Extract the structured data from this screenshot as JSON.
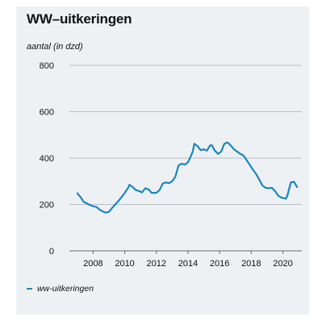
{
  "chart_data": {
    "type": "line",
    "title": "WW–uitkeringen",
    "ylabel": "aantal (in dzd)",
    "xlabel": "",
    "ylim": [
      0,
      800
    ],
    "xlim": [
      2006.5,
      2021.2
    ],
    "yticks": [
      0,
      200,
      400,
      600,
      800
    ],
    "xticks": [
      2008,
      2010,
      2012,
      2014,
      2016,
      2018,
      2020
    ],
    "grid": true,
    "legend_position": "bottom-left",
    "series": [
      {
        "name": "ww-uitkeringen",
        "color": "#1b86c0",
        "points": [
          [
            2007.0,
            248
          ],
          [
            2007.2,
            232
          ],
          [
            2007.4,
            212
          ],
          [
            2007.6,
            204
          ],
          [
            2007.8,
            198
          ],
          [
            2008.0,
            192
          ],
          [
            2008.2,
            190
          ],
          [
            2008.4,
            178
          ],
          [
            2008.6,
            170
          ],
          [
            2008.8,
            165
          ],
          [
            2009.0,
            168
          ],
          [
            2009.2,
            185
          ],
          [
            2009.4,
            200
          ],
          [
            2009.6,
            215
          ],
          [
            2009.8,
            232
          ],
          [
            2010.0,
            250
          ],
          [
            2010.2,
            270
          ],
          [
            2010.3,
            285
          ],
          [
            2010.5,
            275
          ],
          [
            2010.7,
            262
          ],
          [
            2010.9,
            258
          ],
          [
            2011.1,
            252
          ],
          [
            2011.3,
            270
          ],
          [
            2011.5,
            265
          ],
          [
            2011.7,
            250
          ],
          [
            2012.0,
            250
          ],
          [
            2012.2,
            262
          ],
          [
            2012.4,
            290
          ],
          [
            2012.6,
            295
          ],
          [
            2012.8,
            292
          ],
          [
            2013.0,
            300
          ],
          [
            2013.2,
            320
          ],
          [
            2013.4,
            368
          ],
          [
            2013.6,
            376
          ],
          [
            2013.8,
            372
          ],
          [
            2014.0,
            382
          ],
          [
            2014.2,
            412
          ],
          [
            2014.3,
            428
          ],
          [
            2014.4,
            462
          ],
          [
            2014.6,
            452
          ],
          [
            2014.8,
            434
          ],
          [
            2015.0,
            438
          ],
          [
            2015.2,
            432
          ],
          [
            2015.4,
            455
          ],
          [
            2015.5,
            456
          ],
          [
            2015.7,
            432
          ],
          [
            2015.9,
            418
          ],
          [
            2016.1,
            428
          ],
          [
            2016.3,
            462
          ],
          [
            2016.5,
            468
          ],
          [
            2016.7,
            455
          ],
          [
            2016.9,
            438
          ],
          [
            2017.1,
            428
          ],
          [
            2017.3,
            418
          ],
          [
            2017.5,
            412
          ],
          [
            2017.7,
            392
          ],
          [
            2017.9,
            372
          ],
          [
            2018.1,
            350
          ],
          [
            2018.3,
            332
          ],
          [
            2018.5,
            308
          ],
          [
            2018.7,
            282
          ],
          [
            2018.9,
            272
          ],
          [
            2019.1,
            270
          ],
          [
            2019.3,
            272
          ],
          [
            2019.5,
            258
          ],
          [
            2019.7,
            238
          ],
          [
            2019.9,
            230
          ],
          [
            2020.0,
            228
          ],
          [
            2020.2,
            225
          ],
          [
            2020.3,
            242
          ],
          [
            2020.5,
            295
          ],
          [
            2020.7,
            298
          ],
          [
            2020.9,
            275
          ]
        ]
      }
    ]
  }
}
